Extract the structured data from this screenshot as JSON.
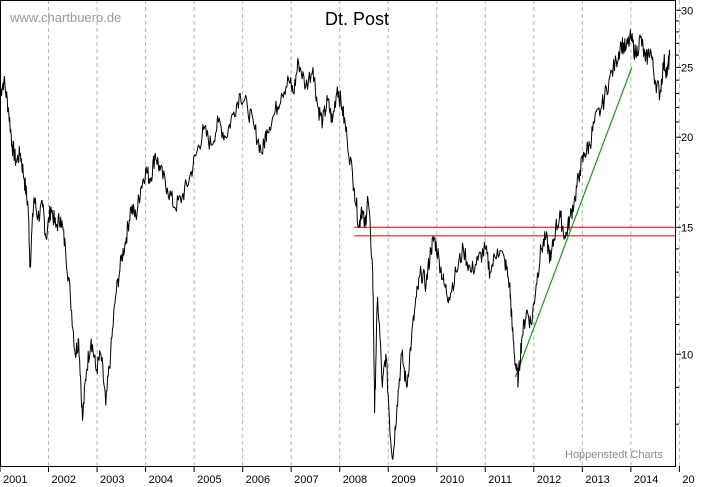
{
  "chart_data": {
    "type": "line",
    "title": "Dt. Post",
    "watermark": "www.chartbuero.de",
    "credit": "Hoppenstedt Charts",
    "y_scale": "log",
    "ylim": [
      7,
      31
    ],
    "xlim": [
      2001.0,
      2014.93
    ],
    "y_ticks": [
      10,
      15,
      20,
      25,
      30
    ],
    "x_ticks": [
      "2001",
      "2002",
      "2003",
      "2004",
      "2005",
      "2006",
      "2007",
      "2008",
      "2009",
      "2010",
      "2011",
      "2012",
      "2013",
      "2014",
      "20"
    ],
    "grid": "vertical-dashed",
    "colors": {
      "price": "#000000",
      "support": "#d62020",
      "trend": "#1a9a1a"
    },
    "series": [
      {
        "values": [
          [
            2001.0,
            23.0
          ],
          [
            2001.08,
            24.0
          ],
          [
            2001.17,
            22.0
          ],
          [
            2001.25,
            19.5
          ],
          [
            2001.33,
            18.5
          ],
          [
            2001.42,
            19.0
          ],
          [
            2001.5,
            17.5
          ],
          [
            2001.58,
            16.0
          ],
          [
            2001.62,
            13.2
          ],
          [
            2001.7,
            16.5
          ],
          [
            2001.78,
            15.5
          ],
          [
            2001.88,
            16.0
          ],
          [
            2001.95,
            14.5
          ],
          [
            2002.05,
            16.0
          ],
          [
            2002.15,
            15.0
          ],
          [
            2002.25,
            15.5
          ],
          [
            2002.35,
            14.0
          ],
          [
            2002.45,
            12.0
          ],
          [
            2002.55,
            10.0
          ],
          [
            2002.62,
            10.5
          ],
          [
            2002.7,
            8.1
          ],
          [
            2002.78,
            9.5
          ],
          [
            2002.88,
            10.5
          ],
          [
            2002.98,
            9.5
          ],
          [
            2003.08,
            10.0
          ],
          [
            2003.18,
            8.5
          ],
          [
            2003.28,
            10.0
          ],
          [
            2003.38,
            12.0
          ],
          [
            2003.5,
            13.5
          ],
          [
            2003.6,
            14.5
          ],
          [
            2003.7,
            16.0
          ],
          [
            2003.8,
            15.5
          ],
          [
            2003.9,
            17.0
          ],
          [
            2004.0,
            18.0
          ],
          [
            2004.1,
            17.5
          ],
          [
            2004.2,
            19.0
          ],
          [
            2004.3,
            18.0
          ],
          [
            2004.45,
            17.0
          ],
          [
            2004.6,
            16.0
          ],
          [
            2004.75,
            16.5
          ],
          [
            2004.9,
            17.5
          ],
          [
            2005.05,
            19.0
          ],
          [
            2005.2,
            20.5
          ],
          [
            2005.35,
            19.5
          ],
          [
            2005.5,
            21.0
          ],
          [
            2005.65,
            20.0
          ],
          [
            2005.8,
            21.5
          ],
          [
            2005.95,
            23.0
          ],
          [
            2006.1,
            22.0
          ],
          [
            2006.25,
            20.5
          ],
          [
            2006.4,
            19.0
          ],
          [
            2006.5,
            20.5
          ],
          [
            2006.65,
            21.5
          ],
          [
            2006.8,
            23.0
          ],
          [
            2006.95,
            24.0
          ],
          [
            2007.05,
            23.0
          ],
          [
            2007.15,
            25.5
          ],
          [
            2007.3,
            23.5
          ],
          [
            2007.45,
            25.0
          ],
          [
            2007.55,
            22.0
          ],
          [
            2007.65,
            21.0
          ],
          [
            2007.75,
            22.5
          ],
          [
            2007.85,
            21.0
          ],
          [
            2007.95,
            23.5
          ],
          [
            2008.05,
            22.0
          ],
          [
            2008.15,
            20.0
          ],
          [
            2008.3,
            17.0
          ],
          [
            2008.4,
            15.0
          ],
          [
            2008.45,
            16.0
          ],
          [
            2008.52,
            15.0
          ],
          [
            2008.58,
            16.5
          ],
          [
            2008.68,
            13.0
          ],
          [
            2008.72,
            8.3
          ],
          [
            2008.78,
            12.0
          ],
          [
            2008.88,
            9.0
          ],
          [
            2008.95,
            10.0
          ],
          [
            2009.05,
            7.6
          ],
          [
            2009.1,
            7.2
          ],
          [
            2009.18,
            8.5
          ],
          [
            2009.28,
            10.0
          ],
          [
            2009.38,
            9.0
          ],
          [
            2009.48,
            10.5
          ],
          [
            2009.58,
            12.0
          ],
          [
            2009.68,
            13.0
          ],
          [
            2009.78,
            12.5
          ],
          [
            2009.88,
            14.0
          ],
          [
            2009.95,
            14.5
          ],
          [
            2010.05,
            13.5
          ],
          [
            2010.15,
            12.5
          ],
          [
            2010.25,
            12.0
          ],
          [
            2010.4,
            13.0
          ],
          [
            2010.55,
            14.0
          ],
          [
            2010.7,
            13.0
          ],
          [
            2010.85,
            13.5
          ],
          [
            2011.0,
            14.0
          ],
          [
            2011.1,
            13.0
          ],
          [
            2011.25,
            14.0
          ],
          [
            2011.4,
            13.5
          ],
          [
            2011.5,
            12.5
          ],
          [
            2011.55,
            11.0
          ],
          [
            2011.62,
            9.7
          ],
          [
            2011.68,
            9.2
          ],
          [
            2011.75,
            10.5
          ],
          [
            2011.85,
            11.5
          ],
          [
            2011.95,
            11.0
          ],
          [
            2012.05,
            12.5
          ],
          [
            2012.15,
            14.0
          ],
          [
            2012.25,
            14.5
          ],
          [
            2012.35,
            13.5
          ],
          [
            2012.45,
            15.0
          ],
          [
            2012.55,
            15.5
          ],
          [
            2012.65,
            14.5
          ],
          [
            2012.75,
            15.5
          ],
          [
            2012.85,
            16.5
          ],
          [
            2012.95,
            18.0
          ],
          [
            2013.05,
            19.0
          ],
          [
            2013.15,
            19.5
          ],
          [
            2013.25,
            21.0
          ],
          [
            2013.4,
            22.0
          ],
          [
            2013.55,
            24.0
          ],
          [
            2013.7,
            25.5
          ],
          [
            2013.8,
            27.0
          ],
          [
            2013.9,
            26.5
          ],
          [
            2014.0,
            27.5
          ],
          [
            2014.1,
            26.0
          ],
          [
            2014.2,
            27.5
          ],
          [
            2014.3,
            25.5
          ],
          [
            2014.4,
            26.5
          ],
          [
            2014.5,
            24.0
          ],
          [
            2014.6,
            23.0
          ],
          [
            2014.68,
            25.5
          ],
          [
            2014.75,
            24.5
          ],
          [
            2014.8,
            26.0
          ]
        ]
      }
    ],
    "support_lines": [
      15.0,
      14.6
    ],
    "support_x_start": 2008.3,
    "trendline": [
      [
        2011.62,
        9.3
      ],
      [
        2014.02,
        25.0
      ]
    ]
  }
}
